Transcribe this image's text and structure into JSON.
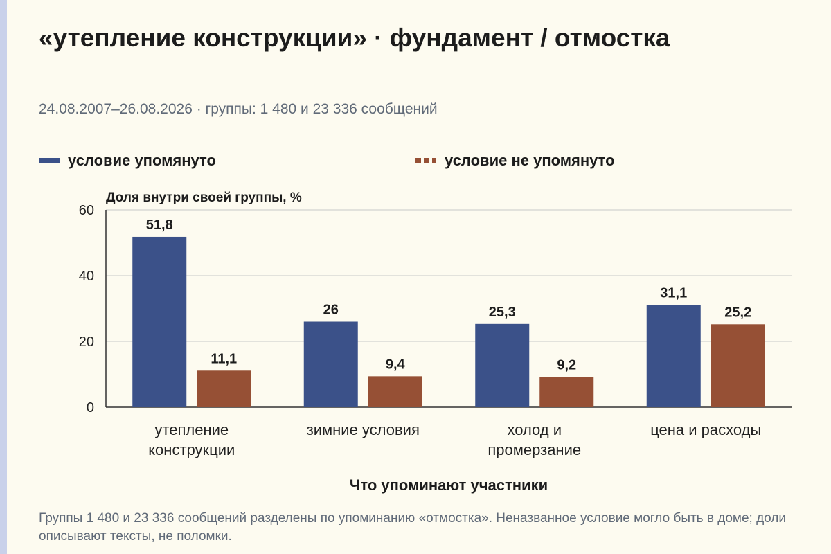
{
  "title": "«утепление конструкции» · фундамент / отмостка",
  "subtitle": "24.08.2007–26.08.2026 · группы: 1 480 и 23 336 сообщений",
  "footnote": "Группы 1 480 и 23 336 сообщений разделены по упоминанию «отмостка». Неназванное условие могло быть в доме; доли описывают тексты, не поломки.",
  "colors": {
    "series_1": "#3b5189",
    "series_2": "#965035",
    "grid": "#c8c8c8",
    "axis": "#333333"
  },
  "legend": [
    {
      "label": "условие упомянуто",
      "style": "solid"
    },
    {
      "label": "условие не упомянуто",
      "style": "dashed"
    }
  ],
  "chart_data": {
    "type": "bar",
    "ylabel": "Доля внутри своей группы, %",
    "xlabel": "Что упоминают участники",
    "ylim": [
      0,
      60
    ],
    "yticks": [
      0,
      20,
      40,
      60
    ],
    "grid": true,
    "legend_position": "top",
    "categories": [
      [
        "утепление",
        "конструкции"
      ],
      [
        "зимние условия"
      ],
      [
        "холод и",
        "промерзание"
      ],
      [
        "цена и расходы"
      ]
    ],
    "series": [
      {
        "name": "условие упомянуто",
        "values": [
          51.8,
          26,
          25.3,
          31.1
        ],
        "labels": [
          "51,8",
          "26",
          "25,3",
          "31,1"
        ]
      },
      {
        "name": "условие не упомянуто",
        "values": [
          11.1,
          9.4,
          9.2,
          25.2
        ],
        "labels": [
          "11,1",
          "9,4",
          "9,2",
          "25,2"
        ]
      }
    ]
  }
}
